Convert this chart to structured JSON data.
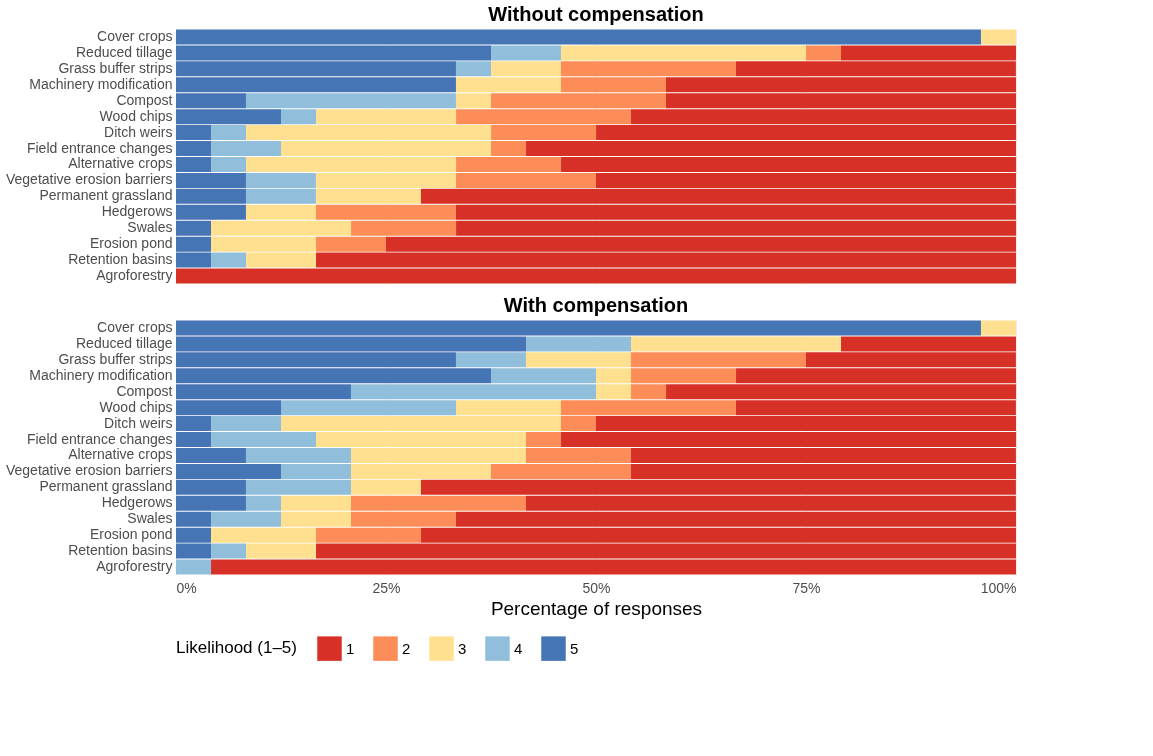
{
  "chart_data": [
    {
      "type": "bar",
      "orientation": "horizontal",
      "stacked": true,
      "title": "Without compensation",
      "tick_labels": "y",
      "grid": true,
      "legend": "bottom",
      "legend_title": "Likelihood (1–5)",
      "categories": [
        "Cover crops",
        "Reduced tillage",
        "Grass buffer strips",
        "Machinery modification",
        "Compost",
        "Wood chips",
        "Ditch weirs",
        "Field entrance changes",
        "Alternative crops",
        "Vegetative erosion barriers",
        "Permanent grassland",
        "Hedgerows",
        "Swales",
        "Erosion pond",
        "Retention basins",
        "Agroforestry"
      ],
      "xlim": [
        0,
        100
      ],
      "xticks": [
        {
          "value": 0,
          "label": null
        },
        {
          "value": 25,
          "label": null
        },
        {
          "value": 50,
          "label": null
        },
        {
          "value": 75,
          "label": null
        },
        {
          "value": 100,
          "label": null
        }
      ],
      "series": [
        {
          "name": "5",
          "color": "#4575b4",
          "values": [
            95.83,
            37.5,
            33.33,
            33.33,
            8.33,
            12.5,
            4.17,
            4.17,
            4.17,
            8.33,
            8.33,
            8.33,
            4.17,
            4.17,
            4.17,
            0
          ]
        },
        {
          "name": "4",
          "color": "#91bfdb",
          "values": [
            0,
            8.33,
            4.17,
            0,
            25,
            4.17,
            4.17,
            8.33,
            4.17,
            8.33,
            8.33,
            0,
            0,
            0,
            4.17,
            0
          ]
        },
        {
          "name": "3",
          "color": "#fee090",
          "values": [
            4.17,
            29.17,
            8.33,
            12.5,
            4.17,
            16.67,
            29.17,
            25,
            25,
            16.67,
            12.5,
            8.33,
            16.67,
            12.5,
            8.33,
            0
          ]
        },
        {
          "name": "2",
          "color": "#fc8d59",
          "values": [
            0,
            4.17,
            20.83,
            12.5,
            20.83,
            20.83,
            12.5,
            4.17,
            12.5,
            16.67,
            0,
            16.67,
            12.5,
            8.33,
            0,
            0
          ]
        },
        {
          "name": "1",
          "color": "#d73027",
          "values": [
            0,
            20.83,
            33.33,
            41.67,
            41.67,
            45.83,
            50,
            58.33,
            54.17,
            50,
            70.83,
            66.67,
            66.67,
            75,
            83.33,
            100
          ]
        }
      ]
    },
    {
      "type": "bar",
      "orientation": "horizontal",
      "stacked": true,
      "title": "With compensation",
      "xlabel": "Percentage of responses",
      "grid": true,
      "legend": "bottom",
      "categories": [
        "Cover crops",
        "Reduced tillage",
        "Grass buffer strips",
        "Machinery modification",
        "Compost",
        "Wood chips",
        "Ditch weirs",
        "Field entrance changes",
        "Alternative crops",
        "Vegetative erosion barriers",
        "Permanent grassland",
        "Hedgerows",
        "Swales",
        "Erosion pond",
        "Retention basins",
        "Agroforestry"
      ],
      "xlim": [
        0,
        100
      ],
      "xticks": [
        {
          "value": 0,
          "label": "0%"
        },
        {
          "value": 25,
          "label": "25%"
        },
        {
          "value": 50,
          "label": "50%"
        },
        {
          "value": 75,
          "label": "75%"
        },
        {
          "value": 100,
          "label": "100%"
        }
      ],
      "series": [
        {
          "name": "5",
          "color": "#4575b4",
          "values": [
            95.83,
            41.67,
            33.33,
            37.5,
            20.83,
            12.5,
            4.17,
            4.17,
            8.33,
            12.5,
            8.33,
            8.33,
            4.17,
            4.17,
            4.17,
            0
          ]
        },
        {
          "name": "4",
          "color": "#91bfdb",
          "values": [
            0,
            12.5,
            8.33,
            12.5,
            29.17,
            20.83,
            8.33,
            12.5,
            12.5,
            8.33,
            12.5,
            4.17,
            8.33,
            0,
            4.17,
            4.17
          ]
        },
        {
          "name": "3",
          "color": "#fee090",
          "values": [
            4.17,
            25,
            12.5,
            4.17,
            4.17,
            12.5,
            33.33,
            25,
            20.83,
            16.67,
            8.33,
            8.33,
            8.33,
            12.5,
            8.33,
            0
          ]
        },
        {
          "name": "2",
          "color": "#fc8d59",
          "values": [
            0,
            0,
            20.83,
            12.5,
            4.17,
            20.83,
            4.17,
            4.17,
            12.5,
            16.67,
            0,
            20.83,
            12.5,
            12.5,
            0,
            0
          ]
        },
        {
          "name": "1",
          "color": "#d73027",
          "values": [
            0,
            20.83,
            25,
            33.33,
            41.67,
            33.33,
            50,
            54.17,
            45.83,
            45.83,
            70.83,
            58.33,
            66.67,
            70.83,
            83.33,
            95.83
          ]
        }
      ]
    }
  ]
}
